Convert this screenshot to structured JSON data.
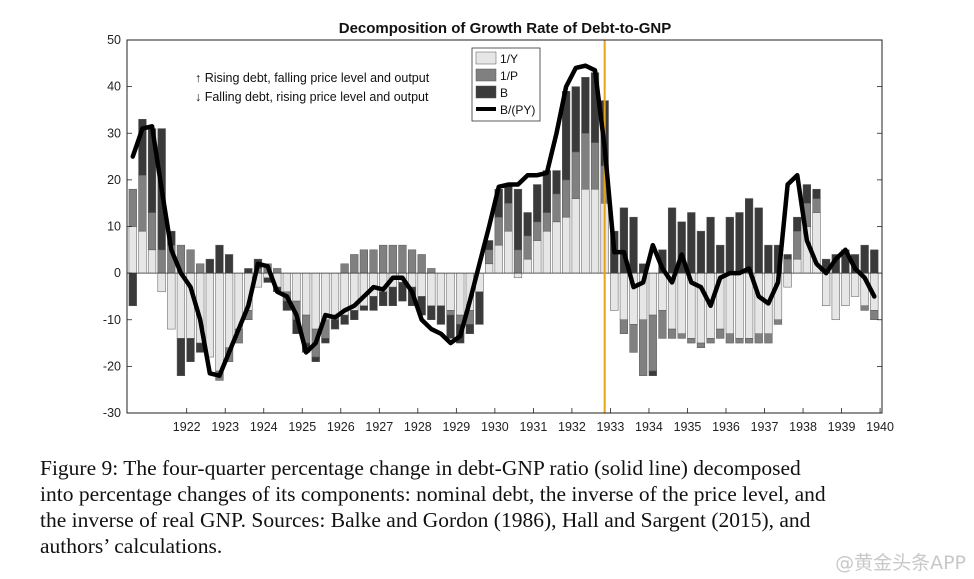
{
  "chart_data": {
    "type": "bar",
    "subtype": "stacked bars with line overlay",
    "title": "Decomposition of Growth Rate of Debt-to-GNP",
    "xlabel": "",
    "ylabel": "",
    "ylim": [
      -30,
      50
    ],
    "yticks": [
      50,
      40,
      30,
      20,
      10,
      0,
      -10,
      -20,
      -30
    ],
    "xticks": [
      "1922",
      "1923",
      "1924",
      "1925",
      "1926",
      "1927",
      "1928",
      "1929",
      "1930",
      "1931",
      "1932",
      "1933",
      "1934",
      "1935",
      "1936",
      "1937",
      "1938",
      "1939",
      "1940"
    ],
    "grid": false,
    "legend_position": "top-center",
    "annotations": [
      "↑ Rising debt, falling price level and output",
      "↓ Falling debt, rising price level and output"
    ],
    "vertical_marker": {
      "x": 1933.25,
      "color": "#e8a317"
    },
    "x": [
      1921.0,
      1921.25,
      1921.5,
      1921.75,
      1922.0,
      1922.25,
      1922.5,
      1922.75,
      1923.0,
      1923.25,
      1923.5,
      1923.75,
      1924.0,
      1924.25,
      1924.5,
      1924.75,
      1925.0,
      1925.25,
      1925.5,
      1925.75,
      1926.0,
      1926.25,
      1926.5,
      1926.75,
      1927.0,
      1927.25,
      1927.5,
      1927.75,
      1928.0,
      1928.25,
      1928.5,
      1928.75,
      1929.0,
      1929.25,
      1929.5,
      1929.75,
      1930.0,
      1930.25,
      1930.5,
      1930.75,
      1931.0,
      1931.25,
      1931.5,
      1931.75,
      1932.0,
      1932.25,
      1932.5,
      1932.75,
      1933.0,
      1933.25,
      1933.5,
      1933.75,
      1934.0,
      1934.25,
      1934.5,
      1934.75,
      1935.0,
      1935.25,
      1935.5,
      1935.75,
      1936.0,
      1936.25,
      1936.5,
      1936.75,
      1937.0,
      1937.25,
      1937.5,
      1937.75,
      1938.0,
      1938.25,
      1938.5,
      1938.75,
      1939.0,
      1939.25,
      1939.5,
      1939.75,
      1940.0,
      1940.25
    ],
    "series": [
      {
        "name": "1/Y",
        "style": "bar",
        "color": "#e6e6e6",
        "values": [
          10,
          9,
          5,
          -4,
          -12,
          -14,
          -14,
          -15,
          -18,
          -21,
          -16,
          -12,
          -8,
          -3,
          -1,
          -3,
          -4,
          -6,
          -9,
          -12,
          -10,
          -9,
          -9,
          -8,
          -7,
          -5,
          -4,
          -3,
          -2,
          -3,
          -5,
          -7,
          -7,
          -8,
          -9,
          -8,
          -4,
          2,
          6,
          9,
          -1,
          3,
          7,
          9,
          11,
          12,
          16,
          18,
          18,
          15,
          -8,
          -10,
          -11,
          -10,
          -9,
          -8,
          -12,
          -13,
          -14,
          -15,
          -14,
          -12,
          -13,
          -14,
          -14,
          -13,
          -13,
          -10,
          -3,
          3,
          10,
          13,
          -7,
          -10,
          -7,
          -5,
          -7,
          -8
        ]
      },
      {
        "name": "1/P",
        "style": "bar",
        "color": "#808080",
        "values": [
          8,
          12,
          8,
          5,
          6,
          6,
          5,
          2,
          0,
          -2,
          -3,
          -3,
          -2,
          1,
          2,
          1,
          -2,
          -4,
          -6,
          -6,
          -4,
          -1,
          2,
          4,
          5,
          5,
          6,
          6,
          6,
          5,
          4,
          1,
          0,
          -1,
          -2,
          -3,
          0,
          3,
          6,
          6,
          5,
          5,
          4,
          4,
          6,
          8,
          10,
          12,
          10,
          8,
          0,
          -3,
          -6,
          -12,
          -12,
          -6,
          -2,
          -1,
          -1,
          -1,
          -1,
          -2,
          -2,
          -1,
          -1,
          -2,
          -2,
          -1,
          3,
          6,
          5,
          3,
          0,
          0,
          0,
          0,
          -1,
          -2
        ]
      },
      {
        "name": "B",
        "style": "bar",
        "color": "#3a3a3a",
        "values": [
          -7,
          12,
          18,
          26,
          3,
          -8,
          -5,
          -2,
          3,
          6,
          4,
          0,
          1,
          2,
          -1,
          -1,
          -2,
          -3,
          -2,
          -1,
          -1,
          -2,
          -2,
          -2,
          -1,
          -3,
          -3,
          -4,
          -4,
          -4,
          -4,
          -3,
          -4,
          -5,
          -4,
          -2,
          -7,
          2,
          6,
          4,
          13,
          5,
          8,
          9,
          5,
          19,
          14,
          12,
          15,
          14,
          9,
          14,
          12,
          2,
          -1,
          5,
          14,
          11,
          13,
          9,
          12,
          6,
          12,
          13,
          16,
          14,
          6,
          6,
          1,
          3,
          4,
          2,
          3,
          4,
          5,
          4,
          6,
          5
        ]
      },
      {
        "name": "B/(PY)",
        "style": "line",
        "color": "#000000",
        "values": [
          25,
          31,
          31.5,
          18,
          5,
          0,
          -3,
          -10,
          -21.5,
          -22,
          -17,
          -12,
          -7,
          2,
          1.5,
          -4,
          -5,
          -9,
          -17,
          -15,
          -9,
          -9.5,
          -8,
          -7,
          -5,
          -3,
          -3.5,
          -1,
          -1,
          -4,
          -10,
          -12,
          -13,
          -15,
          -13.5,
          -6,
          2,
          10,
          18.5,
          19,
          19,
          21,
          21,
          21.5,
          30,
          40,
          44,
          44.5,
          43.5,
          27,
          4.5,
          4.5,
          -3,
          -2,
          6,
          1,
          -2,
          4,
          -2,
          -3,
          -7,
          -1,
          0,
          0,
          1,
          -5,
          -6.5,
          -2,
          19,
          21,
          7,
          2,
          0,
          3,
          5,
          1,
          -1,
          -5
        ]
      }
    ]
  },
  "caption": {
    "lines": [
      "Figure 9: The four-quarter percentage change in debt-GNP ratio (solid line) decomposed",
      "into percentage changes of its components: nominal debt, the inverse of the price level, and",
      "the inverse of real GNP. Sources: Balke and Gordon (1986), Hall and Sargent (2015), and",
      "authors’ calculations."
    ]
  },
  "watermark": "@黄金头条APP"
}
